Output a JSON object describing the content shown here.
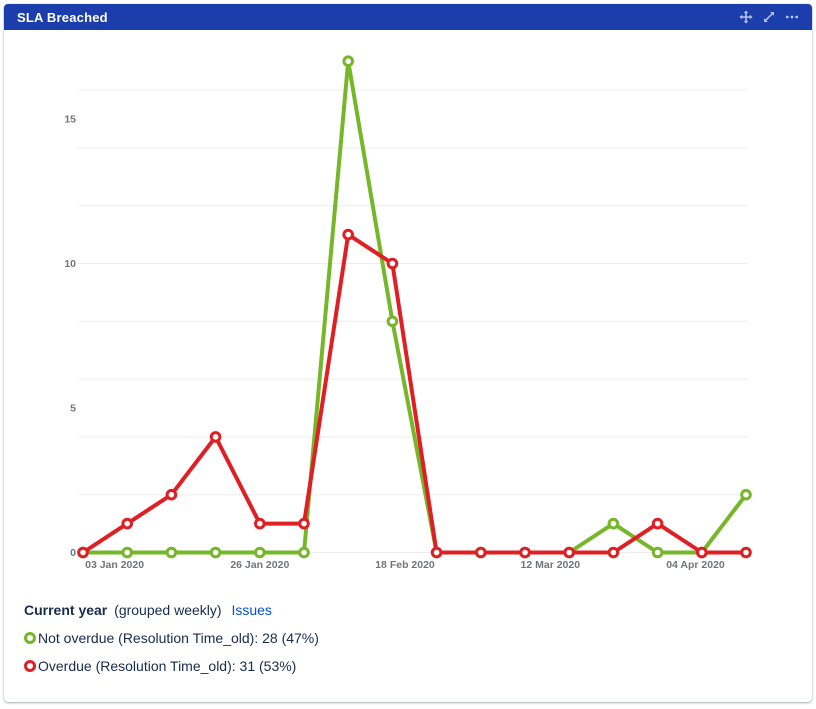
{
  "header": {
    "title": "SLA Breached",
    "accent_color": "#1c3eac",
    "icon_color": "#b5c2ea",
    "icons": [
      {
        "name": "move-icon"
      },
      {
        "name": "expand-icon"
      },
      {
        "name": "more-icon"
      }
    ]
  },
  "chart_data": {
    "type": "line",
    "title": "SLA Breached",
    "grouping": "weekly",
    "x_tick_labels": [
      "03 Jan 2020",
      "26 Jan 2020",
      "18 Feb 2020",
      "12 Mar 2020",
      "04 Apr 2020"
    ],
    "x_tick_day_offsets": [
      5,
      28,
      51,
      74,
      97
    ],
    "point_interval_days": 7,
    "num_points": 16,
    "y_ticks": [
      0,
      5,
      10,
      15
    ],
    "grid_values": [
      0,
      2,
      4,
      6,
      8,
      10,
      12,
      14,
      16
    ],
    "ylim": [
      0,
      17
    ],
    "grid": true,
    "legend_position": "bottom",
    "tick_color": "#71757a",
    "grid_color": "#ededed",
    "series": [
      {
        "id": "not-overdue",
        "name": "Not overdue (Resolution Time_old)",
        "color": "#76b72a",
        "total": 28,
        "percent": "47%",
        "values": [
          0,
          0,
          0,
          0,
          0,
          0,
          17,
          8,
          0,
          0,
          0,
          0,
          1,
          0,
          0,
          2
        ]
      },
      {
        "id": "overdue",
        "name": "Overdue (Resolution Time_old)",
        "color": "#e01f25",
        "total": 31,
        "percent": "53%",
        "values": [
          0,
          1,
          2,
          4,
          1,
          1,
          11,
          10,
          0,
          0,
          0,
          0,
          0,
          1,
          0,
          0
        ]
      }
    ]
  },
  "legend": {
    "heading_bold": "Current year",
    "heading_note": "(grouped weekly)",
    "issues_link": "Issues",
    "items": [
      {
        "label": "Not overdue (Resolution Time_old): 28 (47%)",
        "color": "#76b72a"
      },
      {
        "label": "Overdue (Resolution Time_old): 31 (53%)",
        "color": "#e01f25"
      }
    ]
  }
}
